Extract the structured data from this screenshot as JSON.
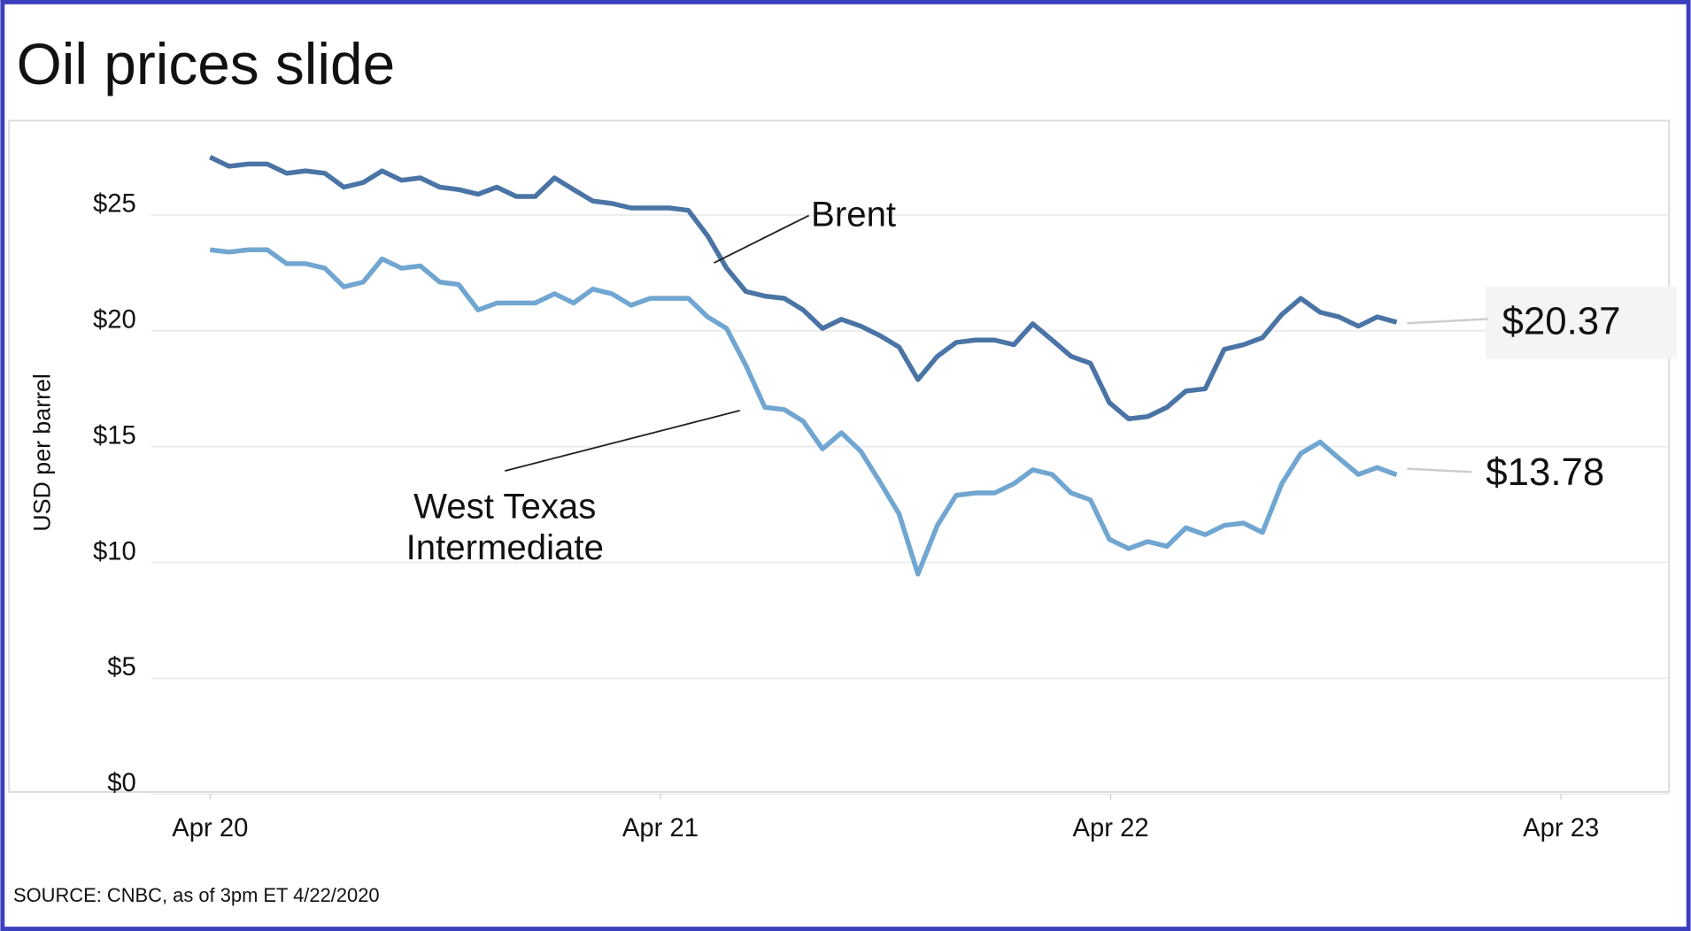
{
  "chart_data": {
    "type": "line",
    "title": "Oil prices slide",
    "y_label": "USD per barrel",
    "source": "SOURCE: CNBC, as of 3pm ET 4/22/2020",
    "grid": true,
    "xlim": [
      -0.2,
      3.24
    ],
    "xticks": [
      {
        "value": 0,
        "label": "Apr 20"
      },
      {
        "value": 1,
        "label": "Apr 21"
      },
      {
        "value": 2,
        "label": "Apr 22"
      },
      {
        "value": 3,
        "label": "Apr 23"
      }
    ],
    "ylim": [
      0,
      29
    ],
    "yticks": [
      {
        "value": 0,
        "label": "$0"
      },
      {
        "value": 5,
        "label": "$5"
      },
      {
        "value": 10,
        "label": "$10"
      },
      {
        "value": 15,
        "label": "$15"
      },
      {
        "value": 20,
        "label": "$20"
      },
      {
        "value": 25,
        "label": "$25"
      }
    ],
    "x": [
      0,
      0.042,
      0.085,
      0.127,
      0.17,
      0.212,
      0.255,
      0.297,
      0.34,
      0.382,
      0.425,
      0.467,
      0.51,
      0.552,
      0.595,
      0.637,
      0.68,
      0.722,
      0.765,
      0.807,
      0.85,
      0.892,
      0.935,
      0.977,
      1.02,
      1.062,
      1.105,
      1.147,
      1.19,
      1.232,
      1.275,
      1.317,
      1.36,
      1.402,
      1.445,
      1.487,
      1.53,
      1.572,
      1.615,
      1.657,
      1.7,
      1.742,
      1.785,
      1.827,
      1.87,
      1.912,
      1.955,
      1.997,
      2.04,
      2.082,
      2.125,
      2.167,
      2.21,
      2.252,
      2.295,
      2.337,
      2.38,
      2.422,
      2.465,
      2.507,
      2.55,
      2.592,
      2.635
    ],
    "series": [
      {
        "name": "Brent",
        "color": "#4a74a5",
        "end_label": "$20.37",
        "values": [
          27.5,
          27.1,
          27.2,
          27.2,
          26.8,
          26.9,
          26.8,
          26.2,
          26.4,
          26.9,
          26.5,
          26.6,
          26.2,
          26.1,
          25.9,
          26.2,
          25.8,
          25.8,
          26.6,
          26.1,
          25.6,
          25.5,
          25.3,
          25.3,
          25.3,
          25.2,
          24.1,
          22.7,
          21.7,
          21.5,
          21.4,
          20.9,
          20.1,
          20.5,
          20.2,
          19.8,
          19.3,
          17.9,
          18.9,
          19.5,
          19.6,
          19.6,
          19.4,
          20.3,
          19.6,
          18.9,
          18.6,
          16.9,
          16.2,
          16.3,
          16.7,
          17.4,
          17.5,
          19.2,
          19.4,
          19.7,
          20.7,
          21.4,
          20.8,
          20.6,
          20.2,
          20.6,
          20.37
        ]
      },
      {
        "name": "West Texas Intermediate",
        "color": "#71a6d1",
        "end_label": "$13.78",
        "values": [
          23.5,
          23.4,
          23.5,
          23.5,
          22.9,
          22.9,
          22.7,
          21.9,
          22.1,
          23.1,
          22.7,
          22.8,
          22.1,
          22.0,
          20.9,
          21.2,
          21.2,
          21.2,
          21.6,
          21.2,
          21.8,
          21.6,
          21.1,
          21.4,
          21.4,
          21.4,
          20.6,
          20.1,
          18.5,
          16.7,
          16.6,
          16.1,
          14.9,
          15.6,
          14.8,
          13.5,
          12.1,
          9.5,
          11.6,
          12.9,
          13.0,
          13.0,
          13.4,
          14.0,
          13.8,
          13.0,
          12.7,
          11.0,
          10.6,
          10.9,
          10.7,
          11.5,
          11.2,
          11.6,
          11.7,
          11.3,
          13.4,
          14.7,
          15.2,
          14.5,
          13.8,
          14.1,
          13.78
        ]
      }
    ]
  }
}
